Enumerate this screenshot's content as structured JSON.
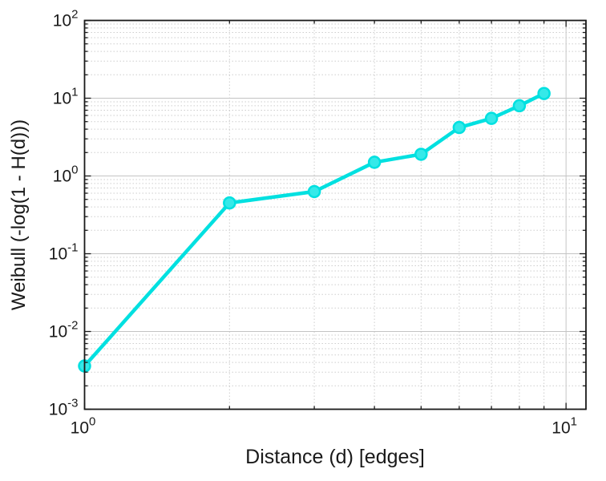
{
  "chart_data": {
    "type": "line",
    "x": [
      1,
      2,
      3,
      4,
      5,
      6,
      7,
      8,
      9
    ],
    "y": [
      0.0036,
      0.45,
      0.63,
      1.5,
      1.9,
      4.2,
      5.5,
      8.0,
      11.5
    ],
    "title": "",
    "xlabel": "Distance (d) [edges]",
    "ylabel": "Weibull (-log(1 - H(d)))",
    "xscale": "log",
    "yscale": "log",
    "xlim": [
      1,
      11
    ],
    "ylim": [
      0.001,
      100
    ],
    "x_ticks": [
      1,
      10
    ],
    "y_ticks": [
      0.001,
      0.01,
      0.1,
      1,
      10,
      100
    ],
    "grid": "on",
    "minor_grid": "on",
    "legend": "none",
    "line_color": "#00e0e0",
    "marker": "o",
    "marker_face": "#35e9e9"
  },
  "style": {
    "background": "#ffffff",
    "text_color": "#1a1a1a",
    "axis_color": "#1a1a1a",
    "major_grid_color": "#c4c4c4",
    "minor_grid_color": "#cdcdcd"
  }
}
